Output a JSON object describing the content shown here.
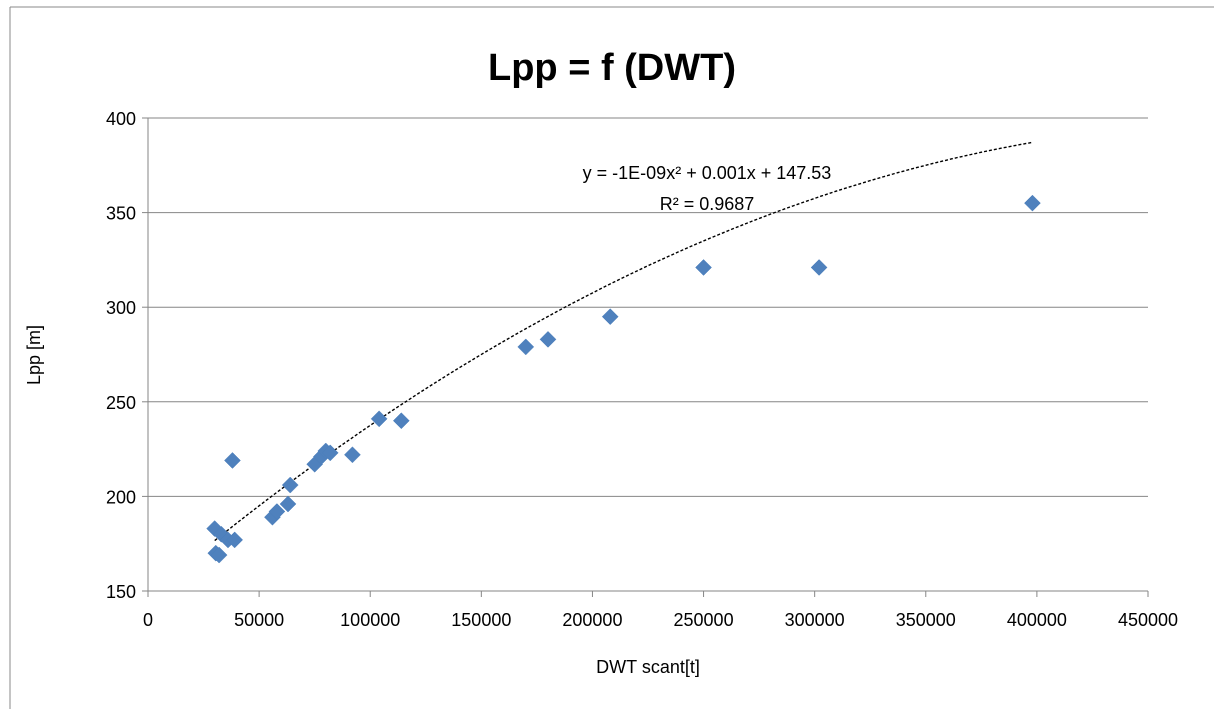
{
  "chart_data": {
    "type": "scatter",
    "title": "Lpp = f (DWT)",
    "xlabel": "DWT scant[t]",
    "ylabel": "Lpp [m]",
    "xlim": [
      0,
      450000
    ],
    "ylim": [
      150,
      400
    ],
    "xticks": [
      0,
      50000,
      100000,
      150000,
      200000,
      250000,
      300000,
      350000,
      400000,
      450000
    ],
    "yticks": [
      150,
      200,
      250,
      300,
      350,
      400
    ],
    "grid": "horizontal",
    "legend": "none",
    "marker": "diamond",
    "marker_color": "#4f81bd",
    "series": [
      {
        "points": [
          [
            30000,
            183
          ],
          [
            30500,
            170
          ],
          [
            32000,
            169
          ],
          [
            33000,
            180
          ],
          [
            36000,
            177
          ],
          [
            38000,
            219
          ],
          [
            39000,
            177
          ],
          [
            56000,
            189
          ],
          [
            58000,
            192
          ],
          [
            63000,
            196
          ],
          [
            64000,
            206
          ],
          [
            75000,
            217
          ],
          [
            78000,
            221
          ],
          [
            80000,
            224
          ],
          [
            82000,
            223
          ],
          [
            92000,
            222
          ],
          [
            104000,
            241
          ],
          [
            114000,
            240
          ],
          [
            170000,
            279
          ],
          [
            180000,
            283
          ],
          [
            208000,
            295
          ],
          [
            250000,
            321
          ],
          [
            302000,
            321
          ],
          [
            398000,
            355
          ]
        ]
      }
    ],
    "trendline": {
      "type": "polynomial",
      "order": 2,
      "style": "dashed",
      "color": "#000000",
      "coefficients": {
        "a": -1e-09,
        "b": 0.001,
        "c": 147.53
      },
      "x_range": [
        30000,
        398000
      ],
      "equation_label": "y = -1E-09x² + 0.001x + 147.53",
      "r2_label": "R² = 0.9687"
    }
  }
}
